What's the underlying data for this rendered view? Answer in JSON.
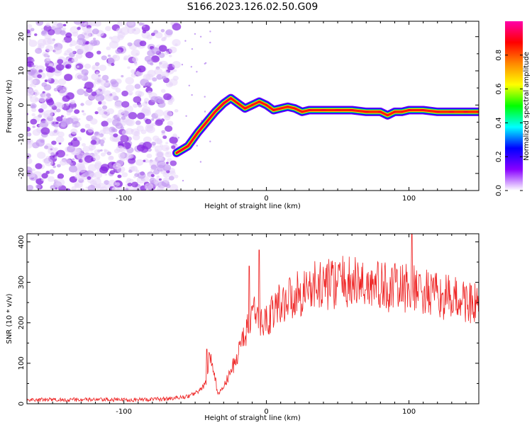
{
  "figure": {
    "title": "S166.2023.126.02.50.G09"
  },
  "chart_data": [
    {
      "type": "heatmap",
      "xlabel": "Height of straight line (km)",
      "ylabel": "Frequency (Hz)",
      "xlim": [
        -168,
        149
      ],
      "ylim": [
        -25,
        24.5
      ],
      "x_ticks": [
        -100,
        0,
        100
      ],
      "y_ticks": [
        -20,
        -10,
        0,
        10,
        20
      ],
      "grid": false,
      "colorbar": {
        "label": "Normalized spectral amplitude",
        "range": [
          0,
          1
        ],
        "ticks": [
          0.0,
          0.2,
          0.4,
          0.6,
          0.8
        ],
        "tick_labels": [
          "0.0",
          "0.2",
          "0.4",
          "0.6",
          "0.8"
        ],
        "colors": [
          "#ffffff",
          "#8800ff",
          "#0000ff",
          "#00ffff",
          "#00ff00",
          "#ffff00",
          "#ff8800",
          "#ff0000",
          "#ff00aa"
        ]
      },
      "noise_region": {
        "x": [
          -168,
          -63
        ],
        "y": [
          -25,
          24.5
        ],
        "amplitude": [
          0.05,
          0.3
        ]
      },
      "ridge": {
        "x": [
          -63,
          -55,
          -48,
          -42,
          -36,
          -30,
          -25,
          -20,
          -15,
          -10,
          -5,
          0,
          5,
          10,
          15,
          20,
          25,
          30,
          40,
          50,
          60,
          70,
          80,
          85,
          90,
          95,
          100,
          110,
          120,
          130,
          140,
          149
        ],
        "y": [
          -14,
          -12,
          -8,
          -5,
          -2,
          0.5,
          2,
          0.5,
          -1,
          0,
          1,
          0,
          -1.5,
          -1,
          -0.5,
          -1,
          -2,
          -1.5,
          -1.5,
          -1.5,
          -1.5,
          -2,
          -2,
          -3,
          -2,
          -2,
          -1.5,
          -1.5,
          -2,
          -2,
          -2,
          -2
        ]
      }
    },
    {
      "type": "line",
      "xlabel": "Height of straight line (km)",
      "ylabel": "SNR (10 * v/v)",
      "xlim": [
        -168,
        149
      ],
      "ylim": [
        0,
        420
      ],
      "x_ticks": [
        -100,
        0,
        100
      ],
      "y_ticks": [
        0,
        100,
        200,
        300,
        400
      ],
      "grid": false,
      "color": "#ee2222",
      "series": [
        {
          "x": [
            -168,
            -150,
            -120,
            -90,
            -70,
            -55,
            -48,
            -42,
            -40,
            -36,
            -34,
            -30,
            -25,
            -20,
            -16,
            -12,
            -8,
            -5,
            0,
            5,
            10,
            15,
            20,
            30,
            40,
            50,
            60,
            70,
            80,
            90,
            100,
            110,
            120,
            130,
            140,
            149
          ],
          "y": [
            10,
            10,
            10,
            10,
            12,
            18,
            30,
            50,
            120,
            60,
            25,
            40,
            80,
            120,
            170,
            190,
            220,
            190,
            210,
            230,
            250,
            260,
            270,
            285,
            295,
            300,
            300,
            295,
            290,
            285,
            285,
            275,
            265,
            260,
            255,
            240
          ]
        }
      ],
      "spikes": [
        {
          "x": -42,
          "y": 135
        },
        {
          "x": -12,
          "y": 340
        },
        {
          "x": -5,
          "y": 380
        },
        {
          "x": 102,
          "y": 420
        }
      ]
    }
  ]
}
